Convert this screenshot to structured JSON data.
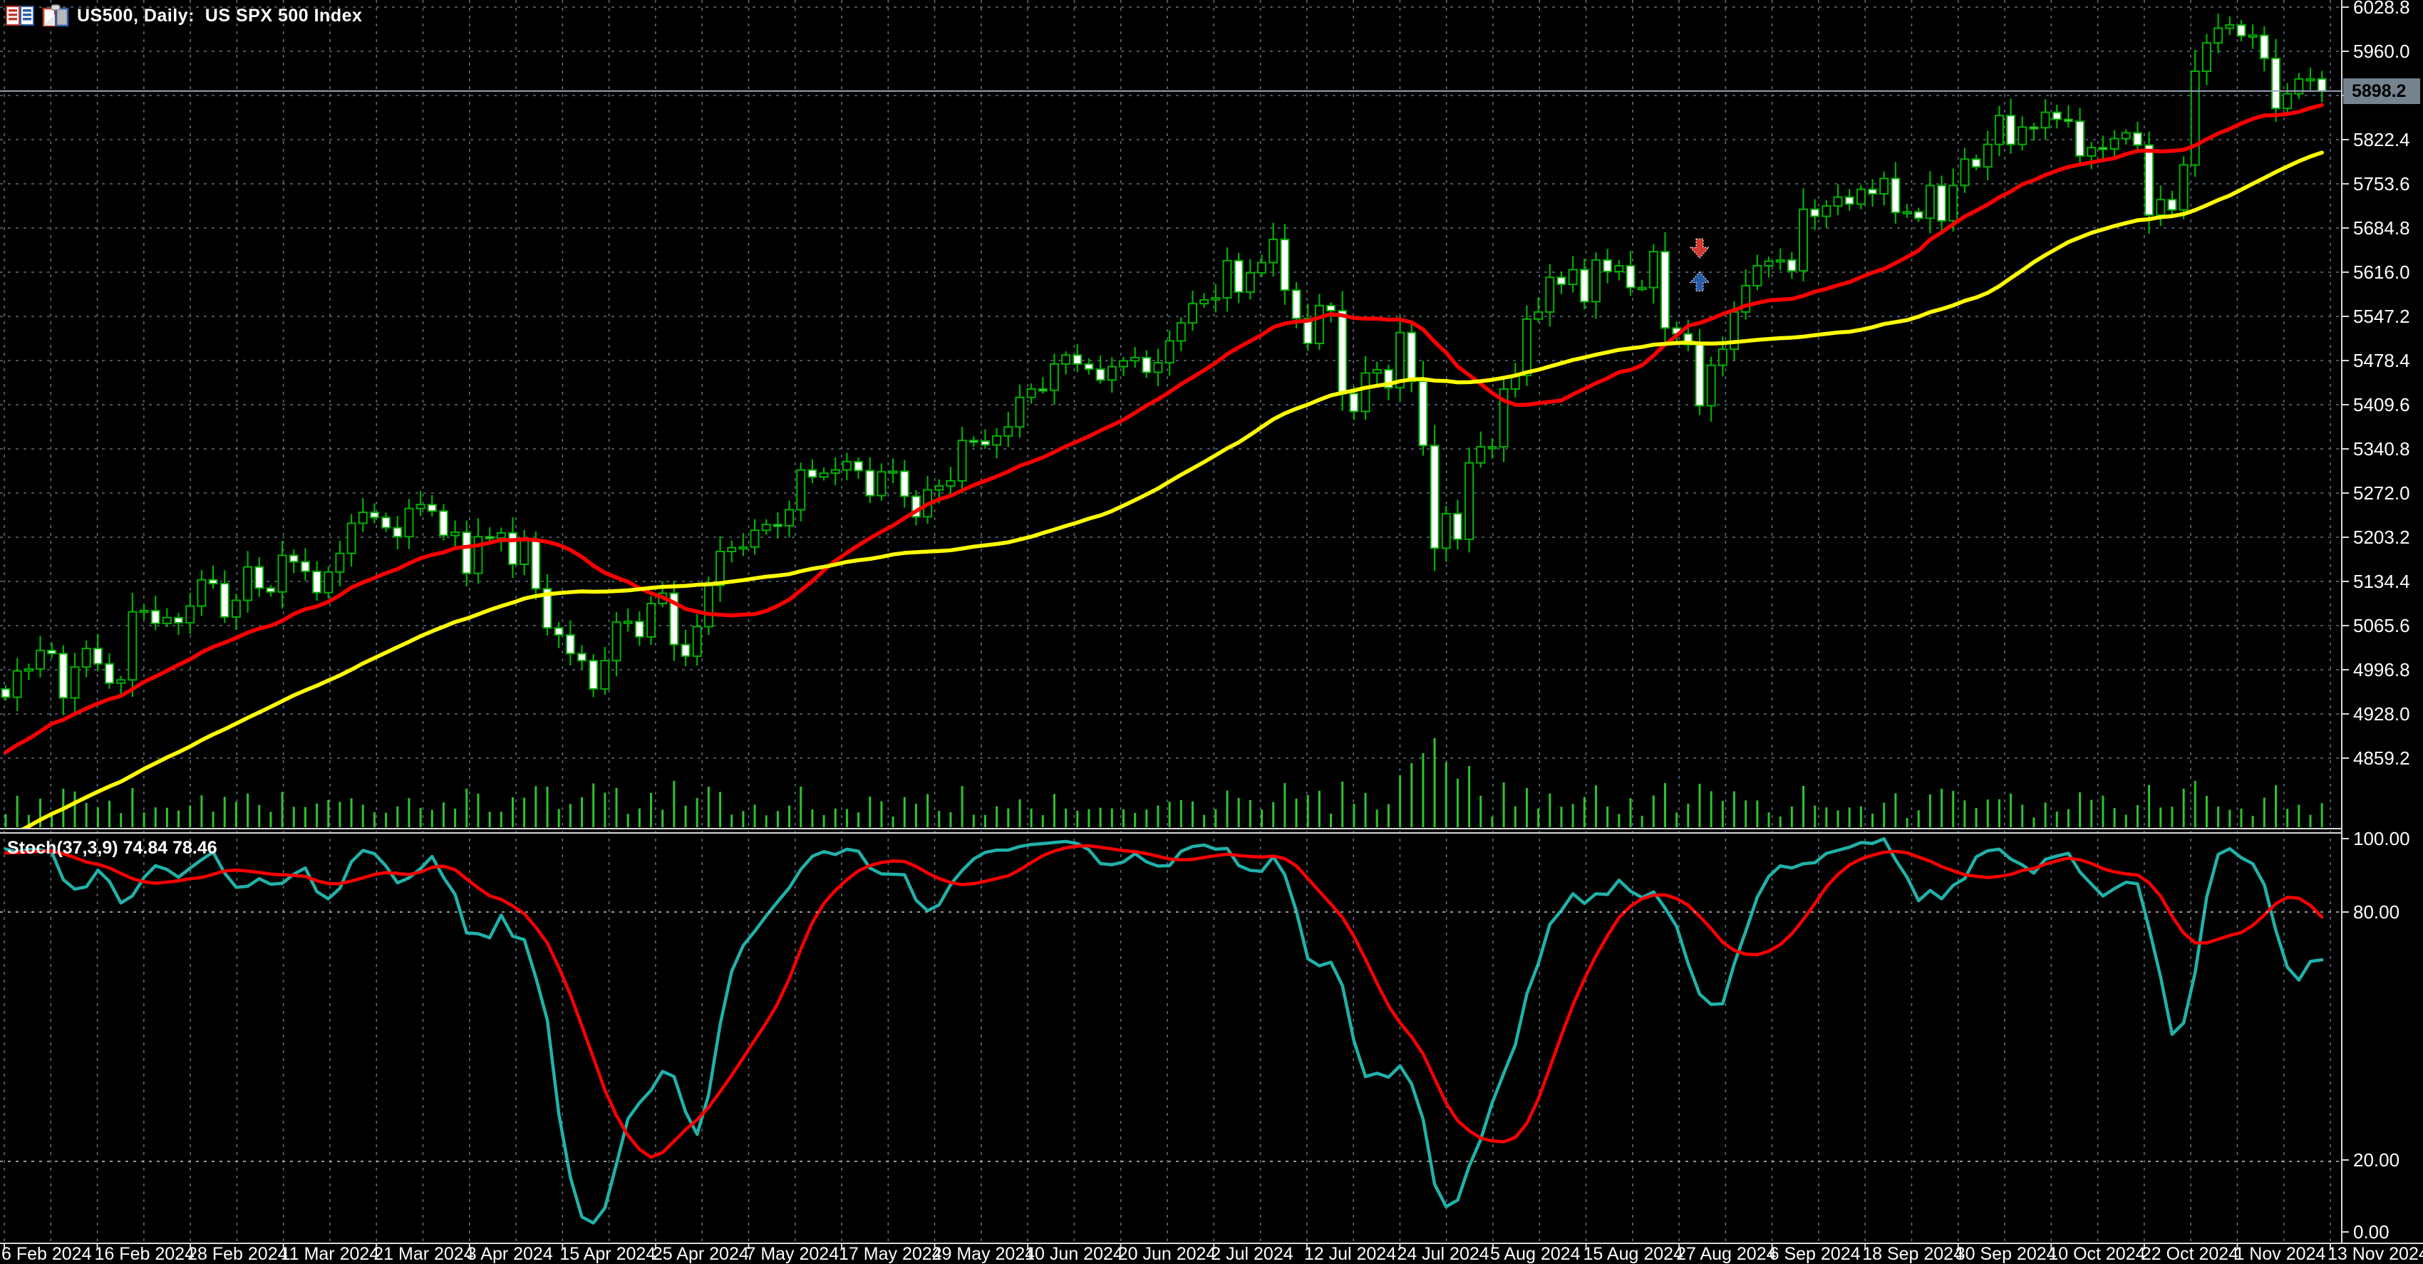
{
  "window": {
    "title": "US500, Daily:  US SPX 500 Index",
    "icons": [
      "chart-list-icon",
      "clipboard-pair-icon"
    ]
  },
  "price_axis": {
    "current_price": "5898.2",
    "ticks": [
      "6028.8",
      "5960.0",
      "5891.2",
      "5822.4",
      "5753.6",
      "5684.8",
      "5616.0",
      "5547.2",
      "5478.4",
      "5409.6",
      "5340.8",
      "5272.0",
      "5203.2",
      "5134.4",
      "5065.6",
      "4996.8",
      "4928.0",
      "4859.2"
    ]
  },
  "time_axis": {
    "labels": [
      "6 Feb 2024",
      "16 Feb 2024",
      "28 Feb 2024",
      "11 Mar 2024",
      "21 Mar 2024",
      "3 Apr 2024",
      "15 Apr 2024",
      "25 Apr 2024",
      "7 May 2024",
      "17 May 2024",
      "29 May 2024",
      "10 Jun 2024",
      "20 Jun 2024",
      "2 Jul 2024",
      "12 Jul 2024",
      "24 Jul 2024",
      "5 Aug 2024",
      "15 Aug 2024",
      "27 Aug 2024",
      "6 Sep 2024",
      "18 Sep 2024",
      "30 Sep 2024",
      "10 Oct 2024",
      "22 Oct 2024",
      "1 Nov 2024",
      "13 Nov 2024"
    ]
  },
  "indicator_panel": {
    "label_name": "Stoch(37,3,9)",
    "value_main": "74.84",
    "value_signal": "78.46",
    "levels": [
      "100.00",
      "80.00",
      "20.00",
      "0.00"
    ]
  },
  "chart_data": [
    {
      "type": "candlestick",
      "symbol": "US500",
      "timeframe": "Daily",
      "title": "US SPX 500 Index",
      "ylabel": "price",
      "axis_ticks": [
        6028.8,
        5960.0,
        5891.2,
        5822.4,
        5753.6,
        5684.8,
        5616.0,
        5547.2,
        5478.4,
        5409.6,
        5340.8,
        5272.0,
        5203.2,
        5134.4,
        5065.6,
        4996.8,
        4928.0,
        4859.2
      ],
      "tick_step": 68.8,
      "ylim": [
        4740,
        6040
      ],
      "current_price": 5898.2,
      "first_open": 4967,
      "closes": [
        4954,
        4995,
        4998,
        5027,
        5022,
        4953,
        5001,
        5030,
        5006,
        4976,
        4981,
        5087,
        5089,
        5069,
        5078,
        5070,
        5096,
        5137,
        5131,
        5079,
        5105,
        5157,
        5124,
        5118,
        5175,
        5165,
        5150,
        5117,
        5149,
        5178,
        5225,
        5242,
        5234,
        5218,
        5204,
        5248,
        5254,
        5244,
        5206,
        5211,
        5147,
        5204,
        5202,
        5210,
        5161,
        5199,
        5123,
        5062,
        5051,
        5022,
        5011,
        4967,
        5011,
        5071,
        5072,
        5048,
        5100,
        5116,
        5036,
        5018,
        5064,
        5128,
        5181,
        5187,
        5188,
        5214,
        5223,
        5221,
        5246,
        5308,
        5297,
        5303,
        5308,
        5321,
        5307,
        5268,
        5305,
        5306,
        5267,
        5235,
        5277,
        5283,
        5291,
        5354,
        5353,
        5347,
        5361,
        5375,
        5421,
        5434,
        5432,
        5473,
        5487,
        5473,
        5465,
        5448,
        5469,
        5478,
        5483,
        5460,
        5475,
        5509,
        5537,
        5567,
        5573,
        5576,
        5634,
        5585,
        5615,
        5631,
        5667,
        5588,
        5544,
        5505,
        5564,
        5556,
        5427,
        5399,
        5459,
        5464,
        5436,
        5522,
        5446,
        5346,
        5186,
        5240,
        5200,
        5319,
        5344,
        5344,
        5434,
        5455,
        5543,
        5554,
        5608,
        5597,
        5620,
        5570,
        5635,
        5617,
        5626,
        5592,
        5592,
        5648,
        5529,
        5520,
        5503,
        5408,
        5471,
        5496,
        5554,
        5595,
        5626,
        5633,
        5635,
        5618,
        5714,
        5703,
        5719,
        5733,
        5722,
        5745,
        5738,
        5762,
        5709,
        5710,
        5700,
        5751,
        5696,
        5751,
        5792,
        5780,
        5815,
        5860,
        5815,
        5842,
        5841,
        5865,
        5854,
        5851,
        5797,
        5810,
        5808,
        5824,
        5833,
        5814,
        5705,
        5729,
        5713,
        5783,
        5929,
        5973,
        5996,
        6001,
        5984,
        5985,
        5949,
        5871,
        5894,
        5917,
        5917,
        5898.2
      ],
      "overlays": [
        {
          "name": "ma-fast",
          "type": "sma",
          "period": 20,
          "color": "#ff0000"
        },
        {
          "name": "ma-slow",
          "type": "sma",
          "period": 50,
          "color": "#ffff00"
        }
      ],
      "volume": {
        "visible": true,
        "color": "#2dc42d",
        "max_spike_bar": 124
      },
      "markers": [
        {
          "shape": "arrow-down",
          "color": "#d23b32",
          "bar": 147,
          "price": 5648
        },
        {
          "shape": "arrow-up",
          "color": "#2a5caa",
          "bar": 147,
          "price": 5600
        }
      ],
      "colors": {
        "background": "#000000",
        "foreground": "#ffffff",
        "grid": "#5d6d7e",
        "candle_outline": "#00b000",
        "bull_fill": "#000000",
        "bear_fill": "#ffffff",
        "bid_line": "#9aa8b8",
        "bid_box_bg": "#75838f"
      }
    },
    {
      "type": "line",
      "name": "Stochastic Oscillator",
      "params": {
        "k_period": 37,
        "slowing": 3,
        "d_period": 9
      },
      "display_values": {
        "main": 74.84,
        "signal": 78.46
      },
      "levels": [
        100,
        80,
        20,
        0
      ],
      "level_lines": [
        80,
        20
      ],
      "ylim": [
        0,
        100
      ],
      "series": [
        {
          "name": "main",
          "color": "#20b2aa",
          "derived": "stochastic %K(37,3) of candles"
        },
        {
          "name": "signal",
          "color": "#ff0000",
          "derived": "SMA(9) of main"
        }
      ]
    }
  ]
}
